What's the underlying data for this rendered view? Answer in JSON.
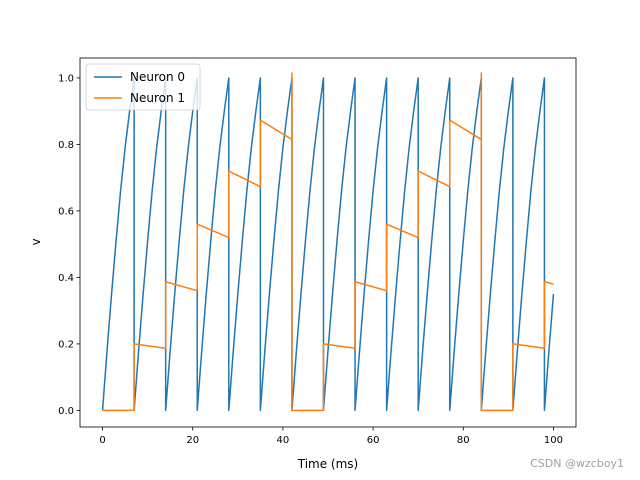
{
  "chart_data": {
    "type": "line",
    "title": "",
    "xlabel": "Time (ms)",
    "ylabel": "v",
    "xlim": [
      -5,
      105
    ],
    "ylim": [
      -0.05,
      1.06
    ],
    "xticks": [
      0,
      20,
      40,
      60,
      80,
      100
    ],
    "yticks": [
      0.0,
      0.2,
      0.4,
      0.6,
      0.8,
      1.0
    ],
    "xtick_labels": [
      "0",
      "20",
      "40",
      "60",
      "80",
      "100"
    ],
    "ytick_labels": [
      "0.0",
      "0.2",
      "0.4",
      "0.6",
      "0.8",
      "1.0"
    ],
    "legend_position": "top-left",
    "series": [
      {
        "name": "Neuron 0",
        "color": "#1f77b4",
        "x": [
          0,
          1,
          2,
          3,
          4,
          5,
          6,
          7,
          7,
          8,
          9,
          10,
          11,
          12,
          13,
          14,
          14,
          15,
          16,
          17,
          18,
          19,
          20,
          21,
          21,
          22,
          23,
          24,
          25,
          26,
          27,
          28,
          28,
          29,
          30,
          31,
          32,
          33,
          34,
          35,
          35,
          36,
          37,
          38,
          39,
          40,
          41,
          42,
          42,
          43,
          44,
          45,
          46,
          47,
          48,
          49,
          49,
          50,
          51,
          52,
          53,
          54,
          55,
          56,
          56,
          57,
          58,
          59,
          60,
          61,
          62,
          63,
          63,
          64,
          65,
          66,
          67,
          68,
          69,
          70,
          70,
          71,
          72,
          73,
          74,
          75,
          76,
          77,
          77,
          78,
          79,
          80,
          81,
          82,
          83,
          84,
          84,
          85,
          86,
          87,
          88,
          89,
          90,
          91,
          91,
          92,
          93,
          94,
          95,
          96,
          97,
          98,
          98,
          99,
          100
        ],
        "y": [
          0,
          0.18,
          0.35,
          0.51,
          0.66,
          0.79,
          0.9,
          1.0,
          0,
          0.18,
          0.35,
          0.51,
          0.66,
          0.79,
          0.9,
          1.0,
          0,
          0.18,
          0.35,
          0.51,
          0.66,
          0.79,
          0.9,
          1.0,
          0,
          0.18,
          0.35,
          0.51,
          0.66,
          0.79,
          0.9,
          1.0,
          0,
          0.18,
          0.35,
          0.51,
          0.66,
          0.79,
          0.9,
          1.0,
          0,
          0.18,
          0.35,
          0.51,
          0.66,
          0.79,
          0.9,
          1.0,
          0,
          0.18,
          0.35,
          0.51,
          0.66,
          0.79,
          0.9,
          1.0,
          0,
          0.18,
          0.35,
          0.51,
          0.66,
          0.79,
          0.9,
          1.0,
          0,
          0.18,
          0.35,
          0.51,
          0.66,
          0.79,
          0.9,
          1.0,
          0,
          0.18,
          0.35,
          0.51,
          0.66,
          0.79,
          0.9,
          1.0,
          0,
          0.18,
          0.35,
          0.51,
          0.66,
          0.79,
          0.9,
          1.0,
          0,
          0.18,
          0.35,
          0.51,
          0.66,
          0.79,
          0.9,
          1.0,
          0,
          0.18,
          0.35,
          0.51,
          0.66,
          0.79,
          0.9,
          1.0,
          0,
          0.18,
          0.35,
          0.51,
          0.66,
          0.79,
          0.9,
          1.0,
          0,
          0.18,
          0.35
        ]
      },
      {
        "name": "Neuron 1",
        "color": "#ff7f0e",
        "x": [
          0,
          7,
          7,
          14,
          14,
          21,
          21,
          28,
          28,
          35,
          35,
          42,
          42,
          42,
          49,
          49,
          56,
          56,
          63,
          63,
          70,
          70,
          77,
          77,
          84,
          84,
          84,
          91,
          91,
          98,
          98,
          100
        ],
        "y": [
          0,
          0,
          0.2,
          0.187,
          0.387,
          0.36,
          0.56,
          0.52,
          0.72,
          0.673,
          0.873,
          0.815,
          1.015,
          0,
          0,
          0.2,
          0.187,
          0.387,
          0.36,
          0.56,
          0.52,
          0.72,
          0.673,
          0.873,
          0.815,
          1.015,
          0,
          0,
          0.2,
          0.187,
          0.387,
          0.38
        ]
      }
    ]
  },
  "watermark": "CSDN @wzcboy1"
}
